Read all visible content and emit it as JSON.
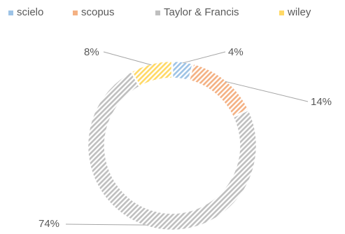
{
  "chart_data": {
    "type": "pie",
    "variant": "donut",
    "slices": [
      {
        "label": "scielo",
        "value": 4,
        "display": "4%",
        "color": "#9DC3E6"
      },
      {
        "label": "scopus",
        "value": 14,
        "display": "14%",
        "color": "#F4B183"
      },
      {
        "label": "Taylor & Francis",
        "value": 74,
        "display": "74%",
        "color": "#BFBFBF"
      },
      {
        "label": "wiley",
        "value": 8,
        "display": "8%",
        "color": "#FFD966"
      }
    ],
    "fill_pattern": "diagonal-hatch",
    "legend_position": "top",
    "title": "",
    "data_labels": true
  }
}
